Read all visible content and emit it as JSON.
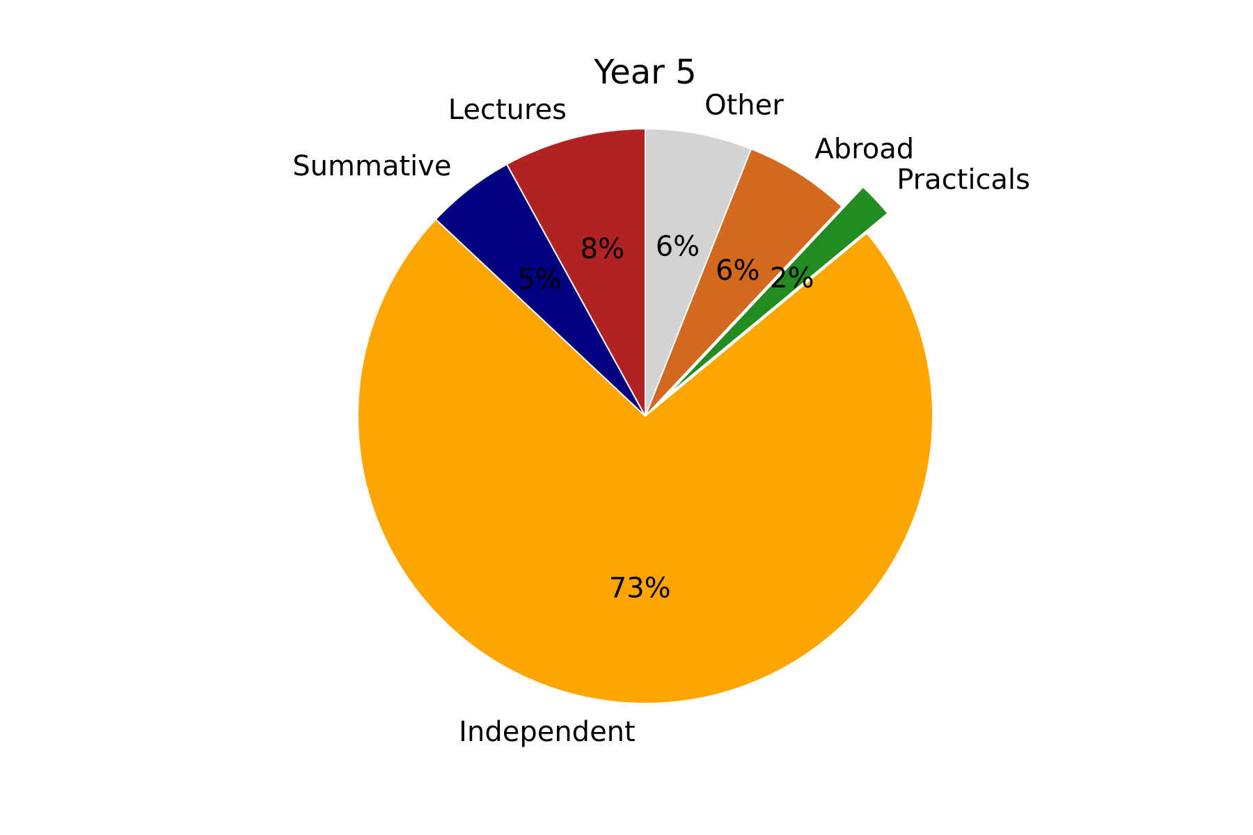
{
  "chart_data": {
    "type": "pie",
    "title": "Year 5",
    "start_angle_deg": 90,
    "direction": "clockwise",
    "slices": [
      {
        "name": "Other",
        "value": 6,
        "pct_label": "6%",
        "color": "#d3d3d3",
        "explode": false
      },
      {
        "name": "Abroad",
        "value": 6,
        "pct_label": "6%",
        "color": "#d2691e",
        "explode": false
      },
      {
        "name": "Practicals",
        "value": 2,
        "pct_label": "2%",
        "color": "#228b22",
        "explode": true
      },
      {
        "name": "Independent",
        "value": 73,
        "pct_label": "73%",
        "color": "#ffa500",
        "explode": false
      },
      {
        "name": "Summative",
        "value": 5,
        "pct_label": "5%",
        "color": "#000080",
        "explode": false
      },
      {
        "name": "Lectures",
        "value": 8,
        "pct_label": "8%",
        "color": "#b22222",
        "explode": false
      }
    ]
  }
}
